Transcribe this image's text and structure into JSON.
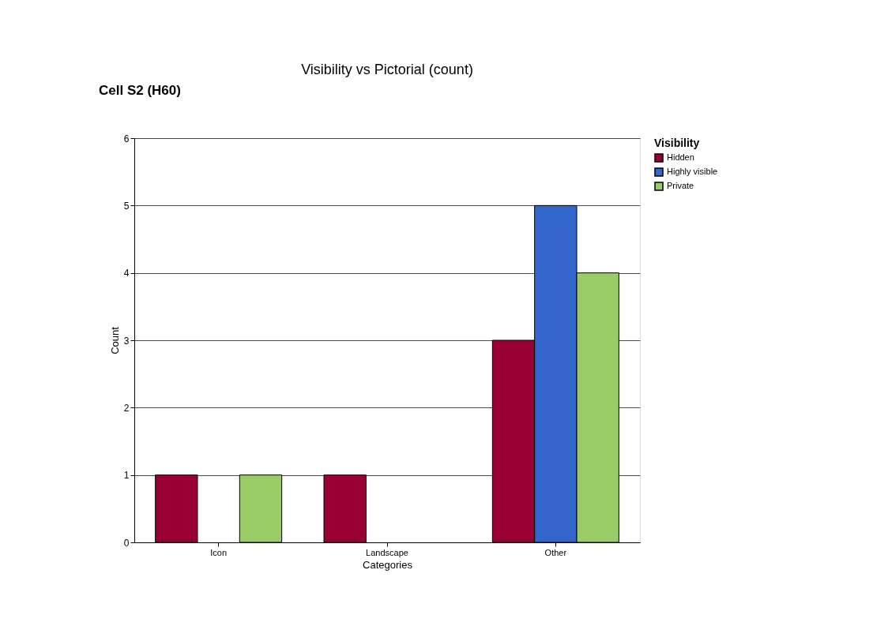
{
  "chart_data": {
    "type": "bar",
    "title": "Visibility vs Pictorial (count)",
    "annotations": [
      "Cell S2 (H60)"
    ],
    "xlabel": "Categories",
    "ylabel": "Count",
    "legend_title": "Visibility",
    "categories": [
      "Icon",
      "Landscape",
      "Other"
    ],
    "series": [
      {
        "name": "Hidden",
        "color": "#990033",
        "values": [
          1,
          1,
          3
        ]
      },
      {
        "name": "Highly visible",
        "color": "#3366cc",
        "values": [
          null,
          null,
          5
        ]
      },
      {
        "name": "Private",
        "color": "#99cc66",
        "values": [
          1,
          null,
          4
        ]
      }
    ],
    "ylim": [
      0,
      6
    ],
    "yticks": [
      0,
      1,
      2,
      3,
      4,
      5,
      6
    ],
    "grid": "y",
    "legend": "top right"
  }
}
